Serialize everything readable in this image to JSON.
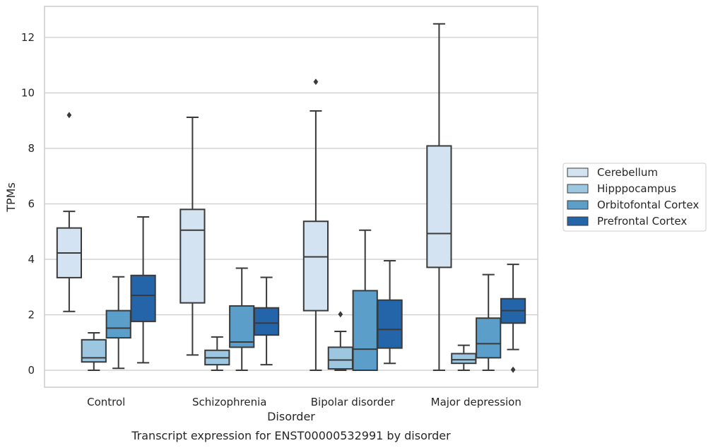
{
  "chart_data": {
    "type": "box",
    "title": "",
    "caption": "Transcript expression for ENST00000532991 by disorder",
    "xlabel": "Disorder",
    "ylabel": "TPMs",
    "ylim": [
      -0.6,
      13.1
    ],
    "yticks": [
      0,
      2,
      4,
      6,
      8,
      10,
      12
    ],
    "grid": true,
    "legend_position": "right",
    "categories": [
      "Control",
      "Schizophrenia",
      "Bipolar disorder",
      "Major depression"
    ],
    "series": [
      {
        "name": "Cerebellum",
        "color": "#d3e3f1",
        "boxes": [
          {
            "whisker_low": 2.12,
            "q1": 3.34,
            "median": 4.23,
            "q3": 5.13,
            "whisker_high": 5.73,
            "outliers": [
              9.2
            ]
          },
          {
            "whisker_low": 0.55,
            "q1": 2.43,
            "median": 5.05,
            "q3": 5.8,
            "whisker_high": 9.12,
            "outliers": []
          },
          {
            "whisker_low": 0.0,
            "q1": 2.15,
            "median": 4.09,
            "q3": 5.37,
            "whisker_high": 9.35,
            "outliers": [
              10.4
            ]
          },
          {
            "whisker_low": 0.0,
            "q1": 3.71,
            "median": 4.93,
            "q3": 8.09,
            "whisker_high": 12.49,
            "outliers": []
          }
        ]
      },
      {
        "name": "Hipppocampus",
        "color": "#9dc6e0",
        "boxes": [
          {
            "whisker_low": 0.0,
            "q1": 0.3,
            "median": 0.45,
            "q3": 1.1,
            "whisker_high": 1.35,
            "outliers": []
          },
          {
            "whisker_low": 0.0,
            "q1": 0.2,
            "median": 0.45,
            "q3": 0.72,
            "whisker_high": 1.2,
            "outliers": []
          },
          {
            "whisker_low": 0.0,
            "q1": 0.05,
            "median": 0.37,
            "q3": 0.83,
            "whisker_high": 1.4,
            "outliers": [
              2.02
            ]
          },
          {
            "whisker_low": 0.0,
            "q1": 0.25,
            "median": 0.38,
            "q3": 0.6,
            "whisker_high": 0.9,
            "outliers": []
          }
        ]
      },
      {
        "name": "Orbitofontal Cortex",
        "color": "#5a9ec9",
        "boxes": [
          {
            "whisker_low": 0.07,
            "q1": 1.17,
            "median": 1.52,
            "q3": 2.15,
            "whisker_high": 3.37,
            "outliers": []
          },
          {
            "whisker_low": 0.0,
            "q1": 0.83,
            "median": 1.02,
            "q3": 2.32,
            "whisker_high": 3.68,
            "outliers": []
          },
          {
            "whisker_low": 0.0,
            "q1": 0.0,
            "median": 0.76,
            "q3": 2.87,
            "whisker_high": 5.05,
            "outliers": []
          },
          {
            "whisker_low": 0.0,
            "q1": 0.45,
            "median": 0.96,
            "q3": 1.88,
            "whisker_high": 3.45,
            "outliers": []
          }
        ]
      },
      {
        "name": "Prefrontal Cortex",
        "color": "#2464a8",
        "boxes": [
          {
            "whisker_low": 0.27,
            "q1": 1.76,
            "median": 2.7,
            "q3": 3.42,
            "whisker_high": 5.53,
            "outliers": []
          },
          {
            "whisker_low": 0.2,
            "q1": 1.27,
            "median": 1.7,
            "q3": 2.25,
            "whisker_high": 3.35,
            "outliers": []
          },
          {
            "whisker_low": 0.25,
            "q1": 0.8,
            "median": 1.47,
            "q3": 2.53,
            "whisker_high": 3.95,
            "outliers": []
          },
          {
            "whisker_low": 0.75,
            "q1": 1.7,
            "median": 2.15,
            "q3": 2.58,
            "whisker_high": 3.82,
            "outliers": [
              0.02
            ]
          }
        ]
      }
    ]
  }
}
